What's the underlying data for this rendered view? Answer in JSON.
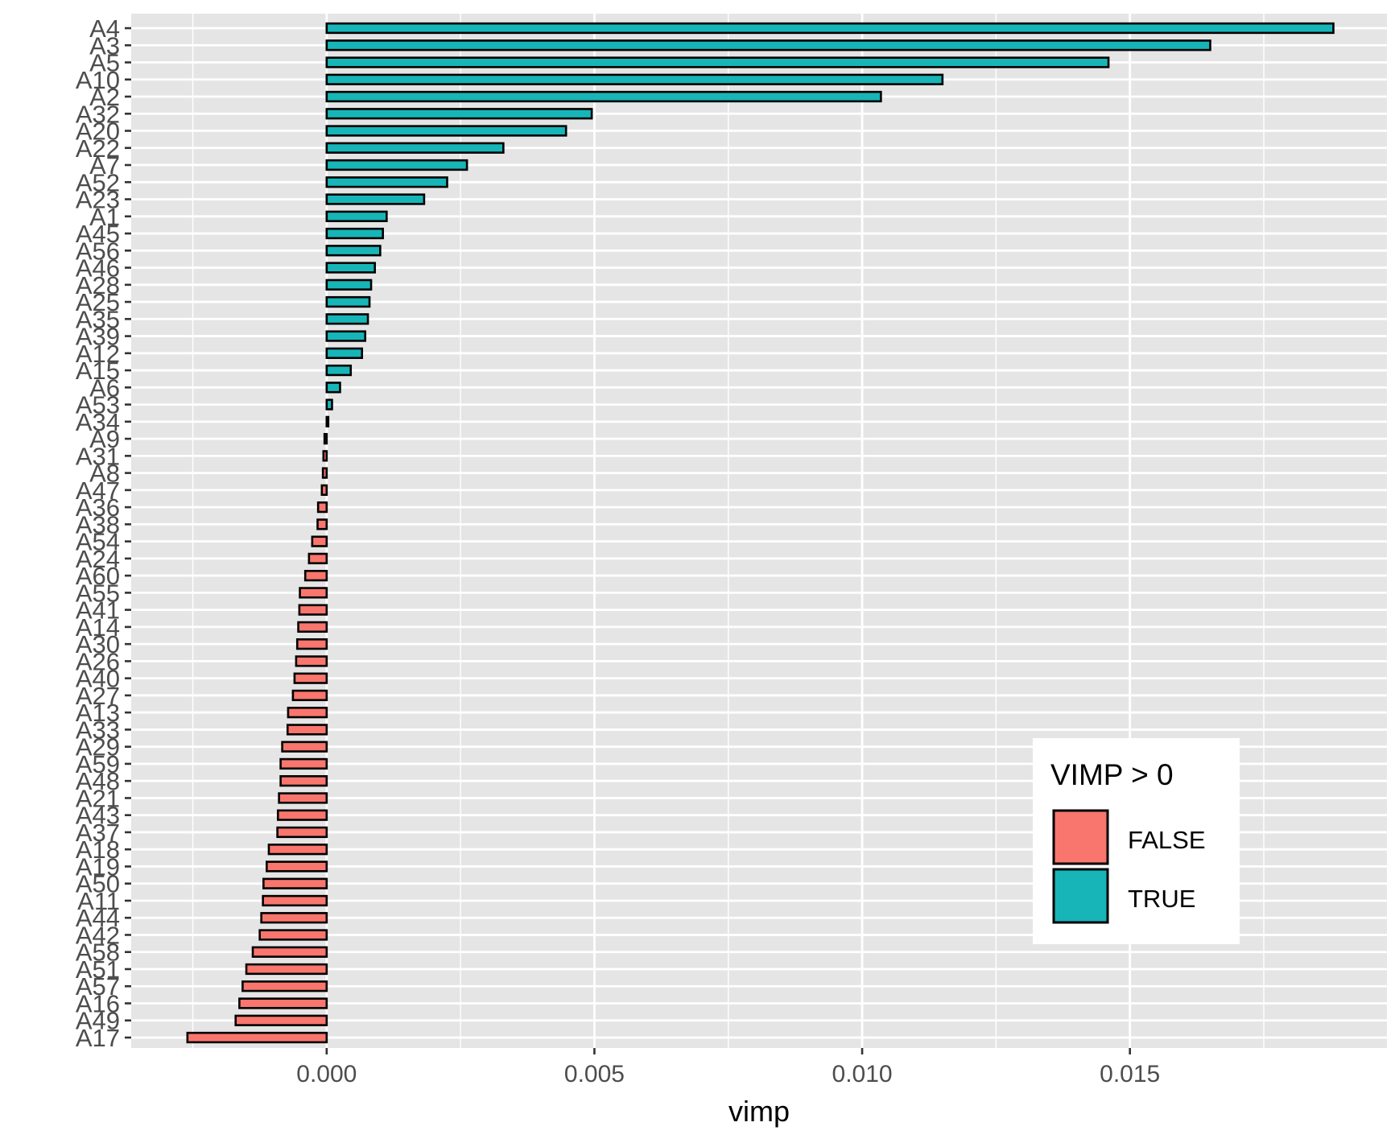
{
  "chart_data": {
    "type": "bar",
    "orientation": "horizontal",
    "categories": [
      "A4",
      "A3",
      "A5",
      "A10",
      "A2",
      "A32",
      "A20",
      "A22",
      "A7",
      "A52",
      "A23",
      "A1",
      "A45",
      "A56",
      "A46",
      "A28",
      "A25",
      "A35",
      "A39",
      "A12",
      "A15",
      "A6",
      "A53",
      "A34",
      "A9",
      "A31",
      "A8",
      "A47",
      "A36",
      "A38",
      "A54",
      "A24",
      "A60",
      "A55",
      "A41",
      "A14",
      "A30",
      "A26",
      "A40",
      "A27",
      "A13",
      "A33",
      "A29",
      "A59",
      "A48",
      "A21",
      "A43",
      "A37",
      "A18",
      "A19",
      "A50",
      "A11",
      "A44",
      "A42",
      "A58",
      "A51",
      "A57",
      "A16",
      "A49",
      "A17"
    ],
    "values": [
      0.0188,
      0.0165,
      0.0146,
      0.0115,
      0.01035,
      0.00495,
      0.00447,
      0.0033,
      0.00262,
      0.00225,
      0.00182,
      0.00112,
      0.00105,
      0.001,
      0.0009,
      0.00083,
      0.0008,
      0.00077,
      0.00072,
      0.00066,
      0.00045,
      0.00025,
      0.0001,
      3e-05,
      -4e-05,
      -6e-05,
      -7e-05,
      -9e-05,
      -0.00016,
      -0.00017,
      -0.00027,
      -0.00033,
      -0.0004,
      -0.0005,
      -0.00051,
      -0.00053,
      -0.00055,
      -0.00057,
      -0.0006,
      -0.00063,
      -0.00072,
      -0.00073,
      -0.00083,
      -0.00086,
      -0.00086,
      -0.00089,
      -0.00091,
      -0.00092,
      -0.00108,
      -0.00112,
      -0.00118,
      -0.00119,
      -0.00122,
      -0.00125,
      -0.00138,
      -0.0015,
      -0.00157,
      -0.00163,
      -0.0017,
      -0.0026
    ],
    "xlabel": "vimp",
    "ylabel": "",
    "xlim": [
      -0.00365,
      0.0198
    ],
    "xticks": [
      0.0,
      0.005,
      0.01,
      0.015
    ],
    "xtick_labels": [
      "0.000",
      "0.005",
      "0.010",
      "0.015"
    ],
    "grid": true,
    "legend": {
      "title": "VIMP > 0",
      "position": "bottom-right inside",
      "entries": [
        {
          "label": "FALSE",
          "color": "#f8766d"
        },
        {
          "label": "TRUE",
          "color": "#17b5b7"
        }
      ]
    }
  },
  "colors": {
    "panel_background": "#e5e5e5",
    "grid": "#ffffff",
    "false_fill": "#f8766d",
    "true_fill": "#17b5b7",
    "bar_outline": "#000000"
  }
}
